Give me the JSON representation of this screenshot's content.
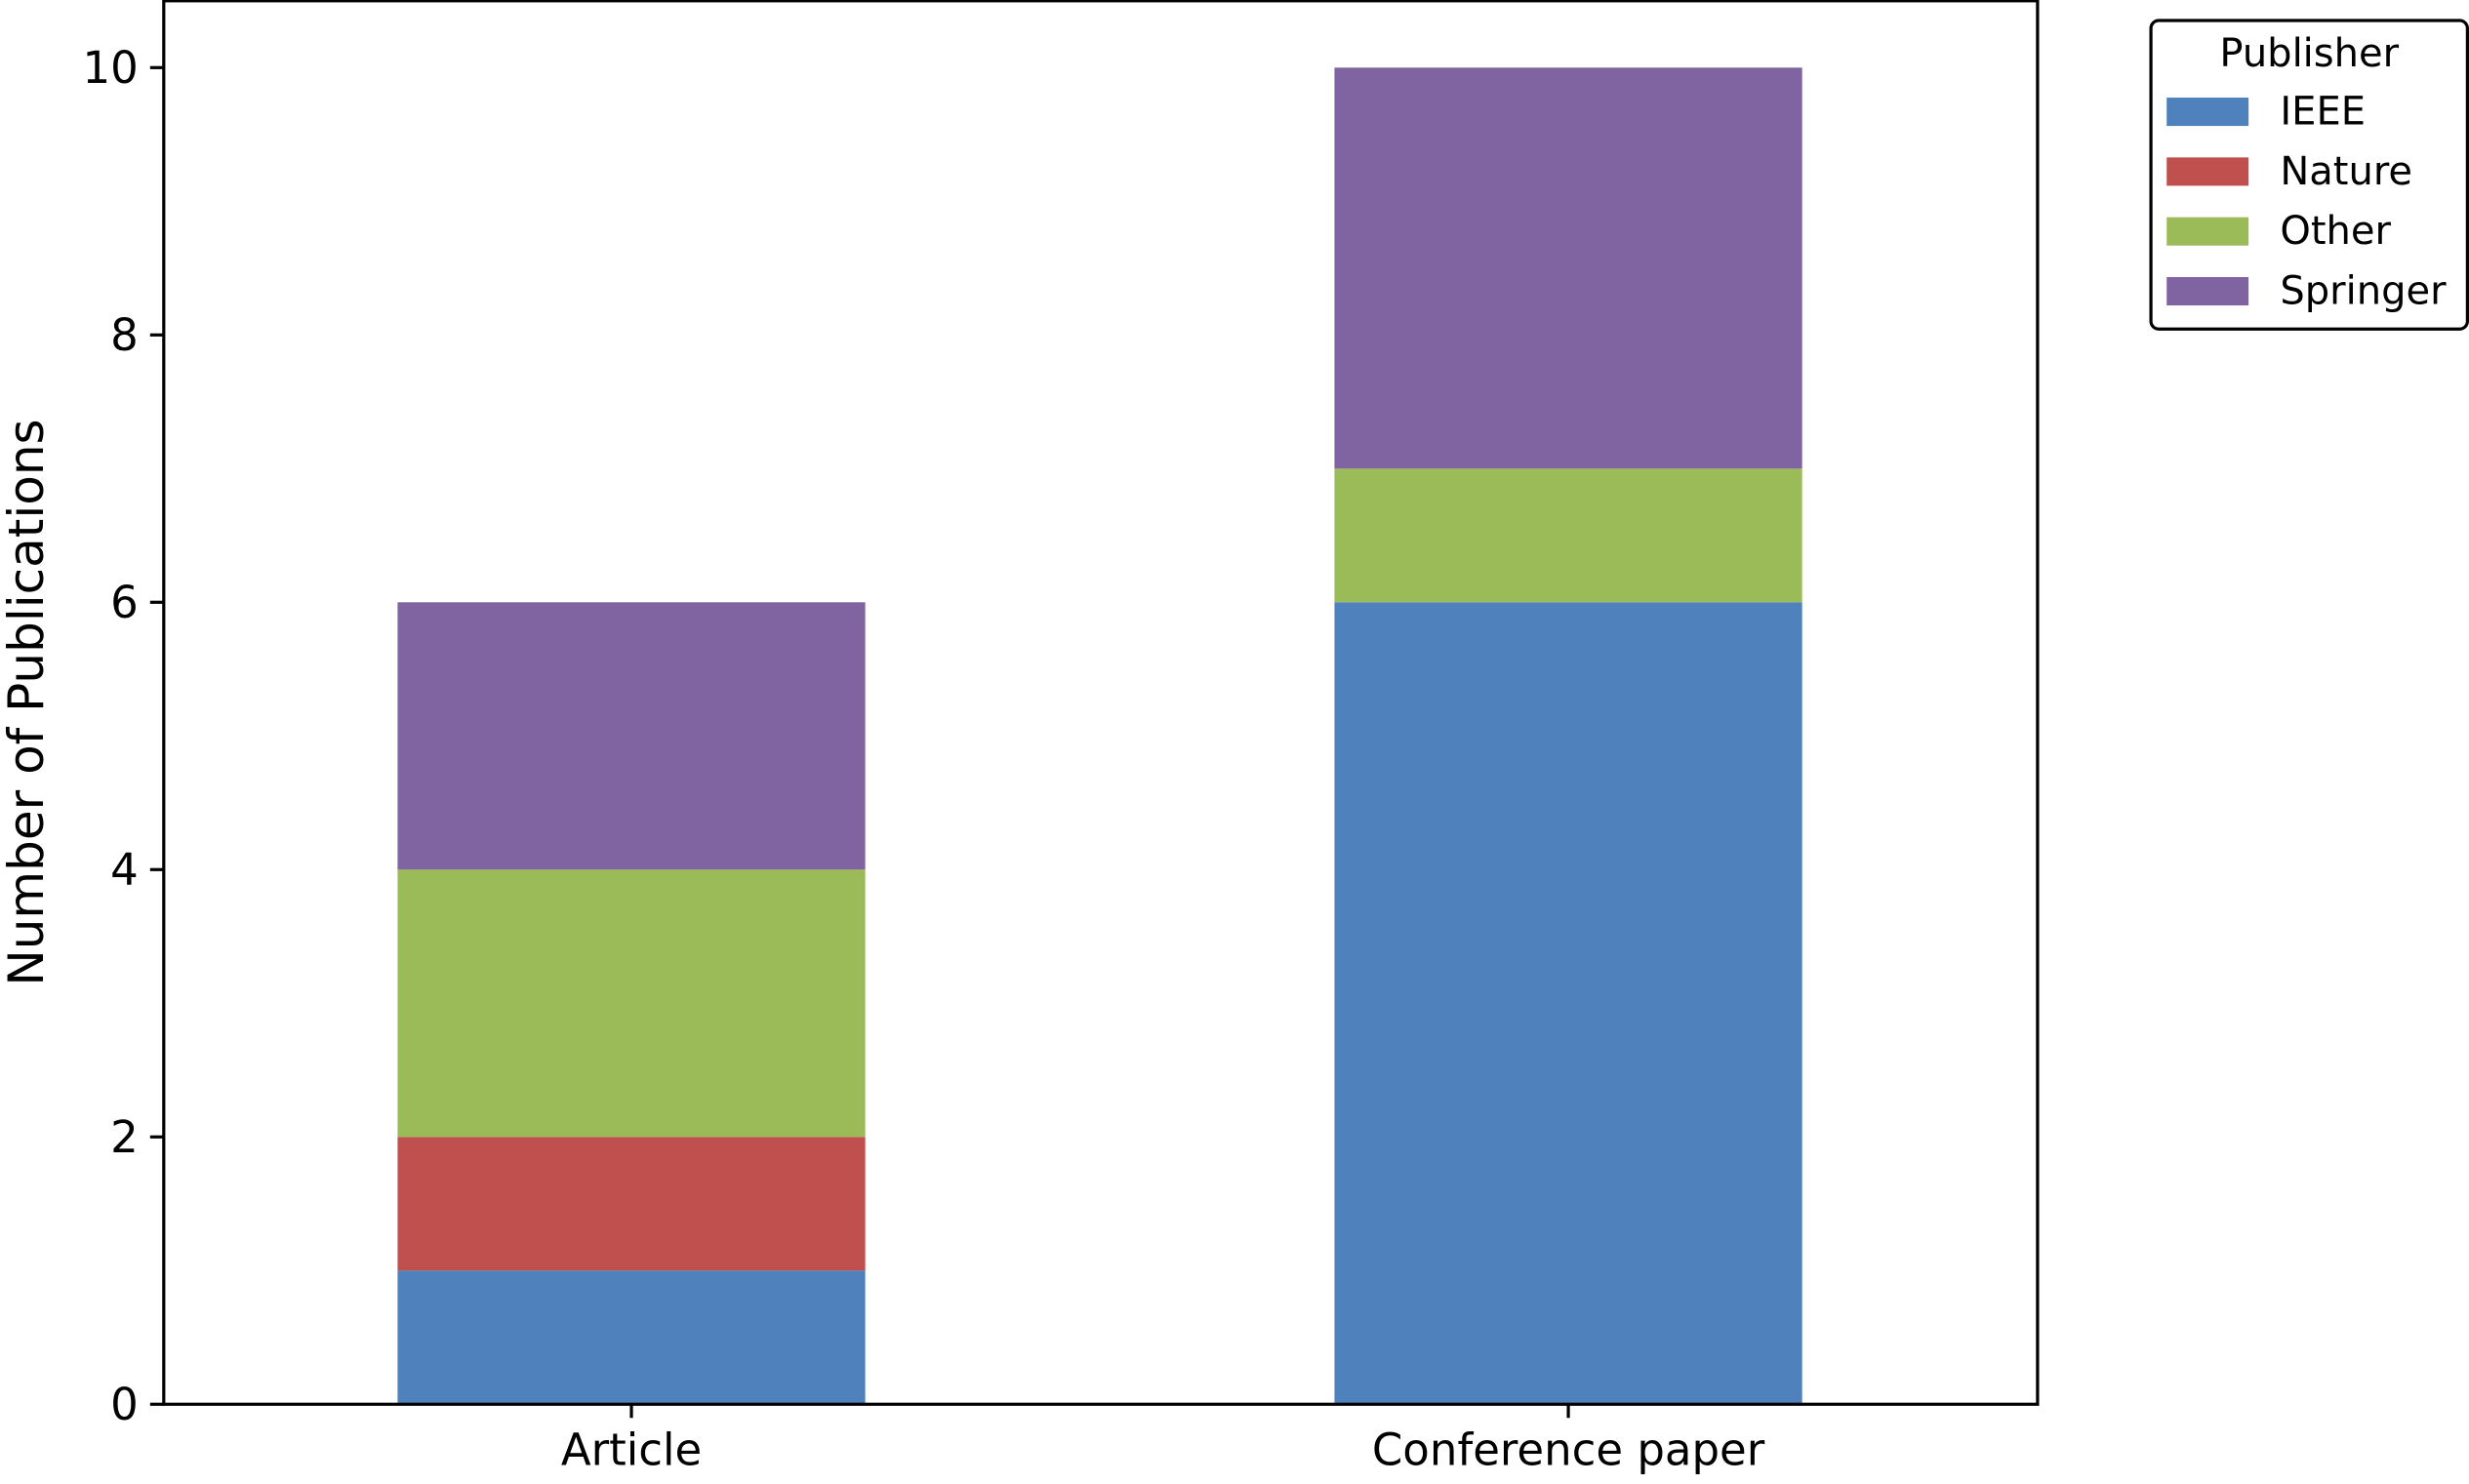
{
  "chart_data": {
    "type": "bar",
    "stacked": true,
    "title": "",
    "xlabel": "",
    "ylabel": "Number of Publications",
    "categories": [
      "Article",
      "Conference paper"
    ],
    "series": [
      {
        "name": "IEEE",
        "values": [
          1,
          6
        ],
        "color": "#4f81bd"
      },
      {
        "name": "Nature",
        "values": [
          1,
          0
        ],
        "color": "#c0504d"
      },
      {
        "name": "Other",
        "values": [
          2,
          1
        ],
        "color": "#9bbb59"
      },
      {
        "name": "Springer",
        "values": [
          2,
          3
        ],
        "color": "#8064a2"
      }
    ],
    "ylim": [
      0,
      10.5
    ],
    "yticks": [
      0,
      2,
      4,
      6,
      8,
      10
    ],
    "ytick_labels": [
      "0",
      "2",
      "4",
      "6",
      "8",
      "10"
    ],
    "grid": false,
    "legend": {
      "title": "Publisher",
      "placement": "outside-top-right"
    }
  }
}
